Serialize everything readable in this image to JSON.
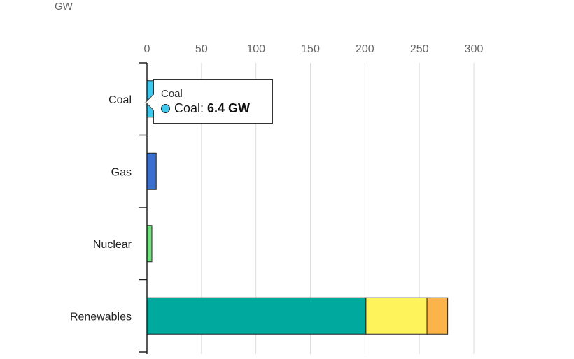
{
  "unit": "GW",
  "chart_data": {
    "type": "bar",
    "orientation": "horizontal",
    "stacked": true,
    "categories": [
      "Coal",
      "Gas",
      "Nuclear",
      "Renewables"
    ],
    "series": [
      {
        "color": "#3fc8ee",
        "values": [
          6.4,
          0,
          0,
          0
        ]
      },
      {
        "color": "#3a6fd0",
        "values": [
          0,
          8.5,
          0,
          0
        ]
      },
      {
        "color": "#6ee27a",
        "values": [
          0,
          0,
          4.5,
          0
        ]
      },
      {
        "color": "#00a99d",
        "values": [
          0,
          0,
          0,
          201
        ]
      },
      {
        "color": "#fef35a",
        "values": [
          0,
          0,
          0,
          56
        ]
      },
      {
        "color": "#fbb44a",
        "values": [
          0,
          0,
          0,
          19
        ]
      }
    ],
    "xticks": [
      "0",
      "50",
      "100",
      "150",
      "200",
      "250",
      "300"
    ],
    "xlim": [
      0,
      300
    ],
    "grid": true,
    "xlabel": "",
    "ylabel": ""
  },
  "tooltip": {
    "title": "Coal",
    "series_label": "Coal:",
    "value": "6.4 GW",
    "dot_color": "#3fc8ee"
  }
}
